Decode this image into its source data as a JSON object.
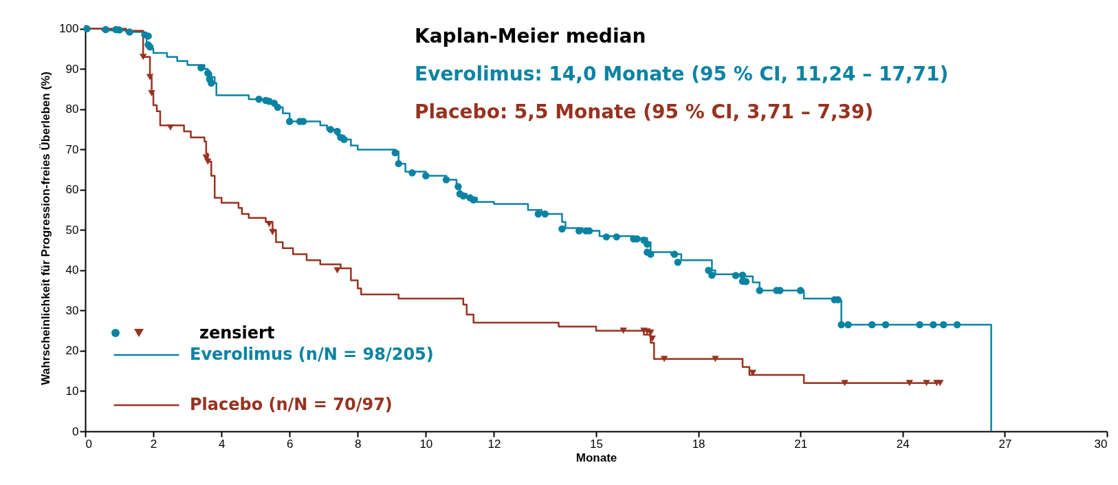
{
  "chart_data": {
    "type": "step",
    "title": "Kaplan-Meier median",
    "annotations": [
      "Everolimus: 14,0 Monate (95 % CI, 11,24 – 17,71)",
      "Placebo: 5,5 Monate (95 % CI, 3,71 – 7,39)"
    ],
    "xlabel": "Monate",
    "ylabel": "Wahrscheinlichkeit für Progression-freies Überleben (%)",
    "legend_title": "zensiert",
    "legend": "bottom left",
    "xlim": [
      0,
      30
    ],
    "xticks": [
      0,
      2,
      4,
      6,
      8,
      10,
      12,
      15,
      18,
      21,
      24,
      27,
      30
    ],
    "ylim": [
      0,
      101
    ],
    "yticks": [
      0,
      10,
      20,
      30,
      40,
      50,
      60,
      70,
      80,
      90,
      100
    ],
    "grid": false,
    "line_style": "solid",
    "series": [
      {
        "name": "Everolimus  (n/N = 98/205)",
        "type": "step",
        "marker": "none",
        "color": "#0a83a3",
        "x": [
          0,
          0.5,
          1.2,
          1.7,
          1.8,
          1.9,
          2.0,
          2.4,
          2.7,
          3.0,
          3.5,
          3.6,
          3.7,
          3.8,
          3.85,
          4.8,
          5.4,
          5.6,
          5.8,
          6.0,
          6.9,
          7.1,
          7.4,
          7.6,
          7.8,
          8.0,
          9.1,
          9.2,
          9.4,
          10.0,
          10.6,
          10.9,
          11.0,
          11.2,
          11.5,
          12.0,
          13.0,
          13.4,
          14.0,
          14.1,
          14.6,
          15.1,
          16.1,
          16.5,
          16.6,
          17.2,
          17.5,
          18.4,
          18.5,
          19.3,
          19.6,
          19.8,
          21.1,
          22.1,
          22.2,
          26.6,
          26.6
        ],
        "values": [
          100,
          99.6,
          99.2,
          98.3,
          96,
          95,
          94,
          93,
          92,
          91,
          90,
          89,
          88,
          86.5,
          83.5,
          82.5,
          81.5,
          80.5,
          79,
          77,
          76,
          75,
          73.5,
          72.5,
          71,
          70,
          69.5,
          66.5,
          64.5,
          63.5,
          62.5,
          61,
          59,
          58,
          57,
          56.5,
          55,
          54,
          52,
          50.5,
          49.8,
          48.5,
          48,
          47,
          44.5,
          44,
          42.5,
          40,
          39,
          38.5,
          37,
          35,
          33,
          32.5,
          26.5,
          26.5,
          0
        ]
      },
      {
        "name": "Placebo (n/N = 70/97)",
        "type": "step",
        "marker": "none",
        "color": "#98321f",
        "x": [
          0,
          1.2,
          1.7,
          1.7,
          1.9,
          1.95,
          2.0,
          2.1,
          2.2,
          2.9,
          3.1,
          3.5,
          3.55,
          3.6,
          3.7,
          3.8,
          4.0,
          4.5,
          4.6,
          4.8,
          5.3,
          5.5,
          5.6,
          5.8,
          6.1,
          6.5,
          6.9,
          7.5,
          7.8,
          8.0,
          8.1,
          9.2,
          11.1,
          11.2,
          11.4,
          13.9,
          15.0,
          16.4,
          16.6,
          16.7,
          19.3,
          19.5,
          21.1,
          25.0
        ],
        "values": [
          100,
          99.5,
          99,
          93,
          88,
          84,
          81,
          79.5,
          76,
          74.5,
          73,
          72,
          69,
          67,
          63.5,
          58,
          56.8,
          55.5,
          54,
          53,
          52,
          50,
          47,
          45.5,
          44,
          42.5,
          41.5,
          40.5,
          37.5,
          35.5,
          34,
          33,
          31.5,
          29,
          27,
          26,
          25,
          24,
          22,
          18,
          16,
          14,
          12,
          12
        ]
      },
      {
        "type": "scatter",
        "marker": "circle",
        "color": "#0a83a3",
        "x": [
          0.05,
          0.6,
          0.9,
          1.0,
          1.3,
          1.75,
          1.85,
          1.85,
          1.9,
          3.4,
          3.6,
          3.65,
          3.7,
          5.1,
          5.3,
          5.4,
          5.55,
          5.65,
          6.0,
          6.3,
          6.4,
          7.2,
          7.4,
          7.5,
          7.6,
          9.1,
          9.2,
          9.6,
          10.0,
          10.6,
          10.95,
          11.0,
          11.1,
          11.3,
          11.4,
          13.3,
          13.5,
          14.0,
          14.5,
          14.7,
          14.8,
          15.3,
          15.6,
          16.1,
          16.2,
          16.4,
          16.5,
          16.5,
          16.6,
          17.3,
          17.4,
          18.3,
          18.4,
          19.1,
          19.3,
          19.3,
          19.4,
          19.8,
          20.3,
          20.4,
          21.0,
          22.0,
          22.1,
          22.2,
          22.4,
          23.1,
          23.5,
          24.5,
          24.9,
          25.2,
          25.6
        ],
        "values": [
          100,
          99.8,
          99.8,
          99.7,
          99.2,
          98.5,
          98.2,
          96,
          95.5,
          90.3,
          89,
          87.5,
          86.5,
          82.5,
          82.2,
          82,
          81.5,
          80.5,
          77,
          77,
          77,
          75,
          74.5,
          73,
          72.5,
          69.2,
          66.5,
          64.2,
          63.5,
          62.5,
          60.8,
          59,
          58.5,
          58,
          57.5,
          54,
          54,
          50.3,
          49.8,
          49.8,
          49.8,
          48.3,
          48.3,
          47.8,
          47.8,
          47.5,
          46.5,
          44.5,
          44,
          44,
          42,
          40,
          38.8,
          38.7,
          38.8,
          37.3,
          37.2,
          35,
          35,
          35,
          35,
          32.7,
          32.7,
          26.5,
          26.5,
          26.5,
          26.5,
          26.5,
          26.5,
          26.5,
          26.5
        ]
      },
      {
        "type": "scatter",
        "marker": "triangle",
        "color": "#98321f",
        "x": [
          1.7,
          1.9,
          1.95,
          2.5,
          3.55,
          3.6,
          5.4,
          5.5,
          7.4,
          15.8,
          16.4,
          16.5,
          16.6,
          16.65,
          17.0,
          18.5,
          19.6,
          22.3,
          24.2,
          24.7,
          25.0,
          25.1
        ],
        "values": [
          93,
          88,
          84,
          75.5,
          68,
          67,
          51.5,
          49.5,
          40,
          25,
          25,
          24.8,
          24.5,
          23,
          18,
          18,
          14.5,
          12,
          12,
          12,
          12,
          12
        ]
      }
    ]
  }
}
